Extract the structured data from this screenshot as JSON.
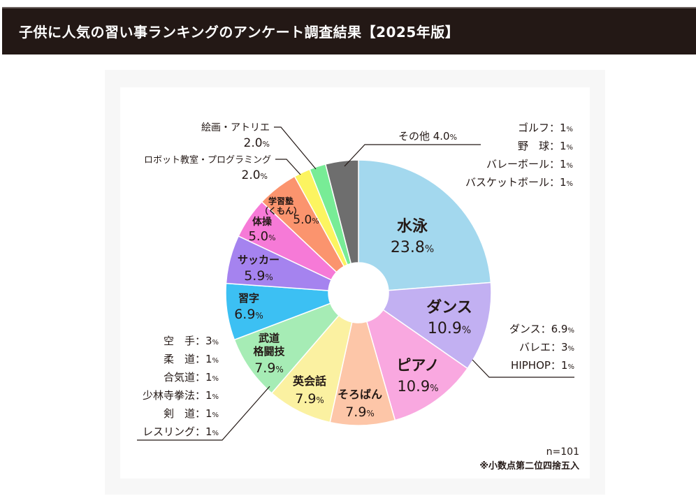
{
  "header": {
    "title": "子供に人気の習い事ランキングのアンケート調査結果【2025年版】"
  },
  "colors": {
    "header_bg": "#231815",
    "text": "#231815",
    "leader": "#231815"
  },
  "chart_data": {
    "type": "pie",
    "variant": "donut",
    "title": "",
    "slices": [
      {
        "label": "水泳",
        "value": 23.8,
        "value_text": "23.8",
        "unit": "%",
        "color": "#a3d8ee"
      },
      {
        "label": "ダンス",
        "value": 10.9,
        "value_text": "10.9",
        "unit": "%",
        "color": "#c2b0f2"
      },
      {
        "label": "ピアノ",
        "value": 10.9,
        "value_text": "10.9",
        "unit": "%",
        "color": "#f9a8e0"
      },
      {
        "label": "そろばん",
        "value": 7.9,
        "value_text": "7.9",
        "unit": "%",
        "color": "#fdc6a8"
      },
      {
        "label": "英会話",
        "value": 7.9,
        "value_text": "7.9",
        "unit": "%",
        "color": "#fbf1a1"
      },
      {
        "label": "武道\n格闘技",
        "value": 7.9,
        "value_text": "7.9",
        "unit": "%",
        "color": "#a6ecb5"
      },
      {
        "label": "習字",
        "value": 6.9,
        "value_text": "6.9",
        "unit": "%",
        "color": "#3cc0f3"
      },
      {
        "label": "サッカー",
        "value": 5.9,
        "value_text": "5.9",
        "unit": "%",
        "color": "#a583ef"
      },
      {
        "label": "体操",
        "value": 5.0,
        "value_text": "5.0",
        "unit": "%",
        "color": "#f67ad7"
      },
      {
        "label": "学習塾\n（くもん）",
        "value": 5.0,
        "value_text": "5.0",
        "unit": "%",
        "color": "#fb946e"
      },
      {
        "label": "ロボット教室・プログラミング",
        "value": 2.0,
        "value_text": "2.0",
        "unit": "%",
        "color": "#fcf460"
      },
      {
        "label": "絵画・アトリエ",
        "value": 2.0,
        "value_text": "2.0",
        "unit": "%",
        "color": "#78ec96"
      },
      {
        "label": "その他",
        "value": 4.0,
        "value_text": "4.0",
        "unit": "%",
        "color": "#6e6e6e"
      }
    ],
    "breakdowns": {
      "other": [
        {
          "label": "ゴルフ",
          "value": "1",
          "unit": "%"
        },
        {
          "label": "野　球",
          "value": "1",
          "unit": "%"
        },
        {
          "label": "バレーボール",
          "value": "1",
          "unit": "%"
        },
        {
          "label": "バスケットボール",
          "value": "1",
          "unit": "%"
        }
      ],
      "dance": [
        {
          "label": "ダンス",
          "value": "6.9",
          "unit": "%"
        },
        {
          "label": "バレエ",
          "value": "3",
          "unit": "%"
        },
        {
          "label": "HIPHOP",
          "value": "1",
          "unit": "%"
        }
      ],
      "martial": [
        {
          "label": "空　手",
          "value": "3",
          "unit": "%"
        },
        {
          "label": "柔　道",
          "value": "1",
          "unit": "%"
        },
        {
          "label": "合気道",
          "value": "1",
          "unit": "%"
        },
        {
          "label": "少林寺拳法",
          "value": "1",
          "unit": "%"
        },
        {
          "label": "剣　道",
          "value": "1",
          "unit": "%"
        },
        {
          "label": "レスリング",
          "value": "1",
          "unit": "%"
        }
      ]
    },
    "notes": {
      "n": "n=101",
      "rounding": "※小数点第二位四捨五入"
    }
  }
}
